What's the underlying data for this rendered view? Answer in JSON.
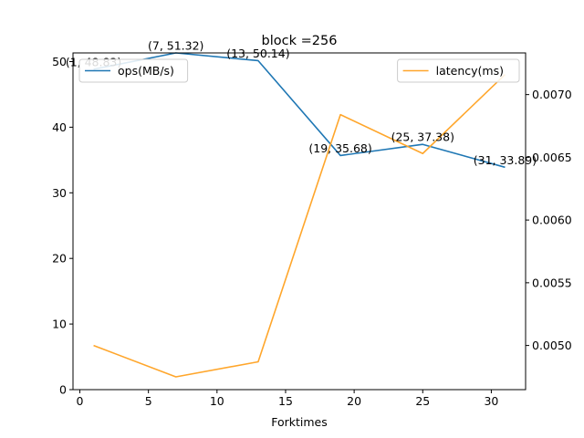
{
  "chart_data": {
    "type": "line",
    "title": "block =256",
    "xlabel": "Forktimes",
    "ylabel_left": "",
    "ylabel_right": "",
    "xlim": [
      -0.5,
      32.5
    ],
    "ylim_left": [
      0,
      51.32
    ],
    "ylim_right": [
      0.004648,
      0.007332
    ],
    "x_ticks": [
      0,
      5,
      10,
      15,
      20,
      25,
      30
    ],
    "y_left_ticks": [
      0,
      10,
      20,
      30,
      40,
      50
    ],
    "y_right_ticks": [
      0.005,
      0.0055,
      0.006,
      0.0065,
      0.007
    ],
    "y_right_tick_labels": [
      "0.0050",
      "0.0055",
      "0.0060",
      "0.0065",
      "0.0070"
    ],
    "grid": false,
    "x": [
      1,
      7,
      13,
      19,
      25,
      31
    ],
    "series": [
      {
        "name": "ops(MB/s)",
        "axis": "left",
        "color": "#1f77b4",
        "values": [
          48.83,
          51.32,
          50.14,
          35.68,
          37.38,
          33.89
        ],
        "annotations": [
          "(1, 48.83)",
          "(7, 51.32)",
          "(13, 50.14)",
          "(19, 35.68)",
          "(25, 37.38)",
          "(31, 33.89)"
        ],
        "legend_position": "upper-left"
      },
      {
        "name": "latency(ms)",
        "axis": "right",
        "color": "#ffa62b",
        "values": [
          0.005,
          0.00475,
          0.00487,
          0.00684,
          0.00653,
          0.00716
        ],
        "legend_position": "upper-right"
      }
    ]
  }
}
